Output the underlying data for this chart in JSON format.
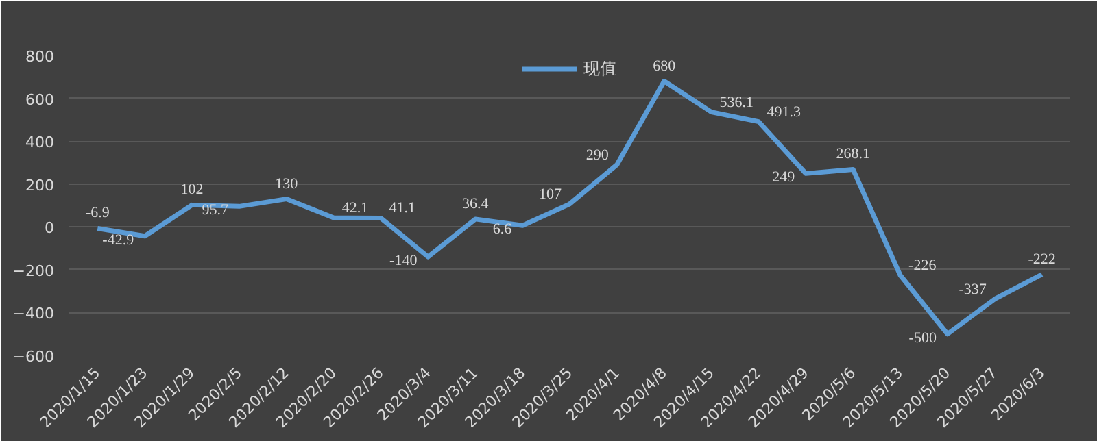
{
  "chart_data": {
    "type": "line",
    "categories": [
      "2020/1/15",
      "2020/1/23",
      "2020/1/29",
      "2020/2/5",
      "2020/2/12",
      "2020/2/20",
      "2020/2/26",
      "2020/3/4",
      "2020/3/11",
      "2020/3/18",
      "2020/3/25",
      "2020/4/1",
      "2020/4/8",
      "2020/4/15",
      "2020/4/22",
      "2020/4/29",
      "2020/5/6",
      "2020/5/13",
      "2020/5/20",
      "2020/5/27",
      "2020/6/3"
    ],
    "series": [
      {
        "name": "现值",
        "color": "#5b9bd5",
        "values": [
          -6.9,
          -42.9,
          102,
          95.7,
          130,
          42.1,
          41.1,
          -140,
          36.4,
          6.6,
          107,
          290,
          680,
          536.1,
          491.3,
          249,
          268.1,
          -226,
          -500,
          -337,
          -222
        ]
      }
    ],
    "ylim": [
      -600,
      800
    ],
    "yticks": [
      -600,
      -400,
      -200,
      0,
      200,
      400,
      600,
      800
    ],
    "grid": "y",
    "legend": "top",
    "data_labels": true,
    "marker": "none",
    "line_style": "solid"
  }
}
